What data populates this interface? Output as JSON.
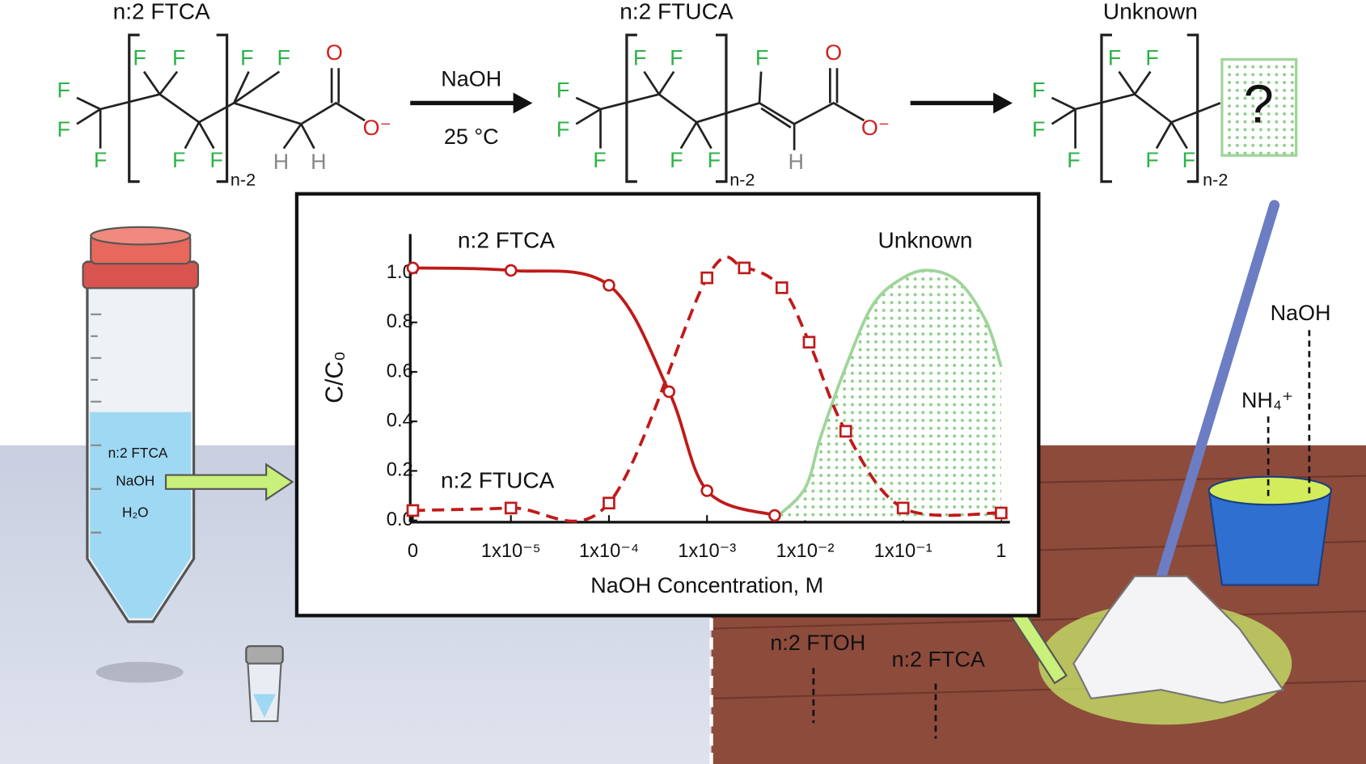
{
  "scheme": {
    "reactant": {
      "name": "n:2 FTCA",
      "atoms": [
        "F",
        "F",
        "F",
        "F",
        "F",
        "F",
        "F",
        "F",
        "F",
        "O",
        "O⁻",
        "H",
        "H"
      ],
      "repeat": "n-2"
    },
    "conditions": [
      "NaOH",
      "25 °C"
    ],
    "product": {
      "name": "n:2 FTUCA",
      "atoms": [
        "F",
        "F",
        "F",
        "F",
        "F",
        "F",
        "F",
        "F",
        "O",
        "O⁻",
        "H"
      ],
      "repeat": "n-2"
    },
    "unknown": {
      "name": "Unknown",
      "atoms": [
        "F",
        "F",
        "F",
        "F",
        "F",
        "F",
        "F"
      ],
      "repeat": "n-2",
      "mark": "?"
    }
  },
  "tube": {
    "labels": [
      "n:2 FTCA",
      "NaOH",
      "H₂O"
    ]
  },
  "bucket": {
    "labels": [
      "NaOH",
      "NH₄⁺"
    ]
  },
  "floor": {
    "labels": [
      "n:2 FTOH",
      "n:2 FTCA"
    ]
  },
  "chart_data": {
    "type": "line",
    "x_label": "NaOH Concentration, M",
    "y_label": "C/C₀",
    "xscale": "log",
    "xlim": [
      1e-06,
      1
    ],
    "xticks": [
      0,
      {
        "value": 1e-05,
        "label": "1x10⁻⁵"
      },
      {
        "value": 0.0001,
        "label": "1x10⁻⁴"
      },
      {
        "value": 0.001,
        "label": "1x10⁻³"
      },
      {
        "value": 0.01,
        "label": "1x10⁻²"
      },
      {
        "value": 0.1,
        "label": "1x10⁻¹"
      },
      1
    ],
    "ylim": [
      0,
      1.15
    ],
    "yticks": [
      {
        "value": 0,
        "label": "0.0"
      },
      0.2,
      0.4,
      0.6,
      0.8,
      {
        "value": 1,
        "label": "1.0"
      }
    ],
    "series": [
      {
        "name": "n:2 FTCA",
        "color": "#c01a1a",
        "marker": "circle",
        "line": "solid",
        "x": [
          0,
          1e-05,
          0.0001,
          0.00041,
          0.001,
          0.0049
        ],
        "values": [
          1.02,
          1.01,
          0.95,
          0.52,
          0.12,
          0.02
        ]
      },
      {
        "name": "n:2 FTUCA",
        "color": "#c01a1a",
        "marker": "square",
        "line": "dashed",
        "x": [
          0,
          1e-05,
          0.0001,
          0.001,
          0.0024,
          0.0058,
          0.011,
          0.026,
          0.1,
          1
        ],
        "values": [
          0.04,
          0.05,
          0.07,
          0.98,
          1.02,
          0.94,
          0.72,
          0.36,
          0.05,
          0.03
        ]
      },
      {
        "name": "Unknown",
        "color": "#9fd59a",
        "marker": "none",
        "line": "solid",
        "fill": "dots",
        "x": [
          0.005,
          0.01,
          0.0145,
          0.026,
          0.049,
          0.1,
          0.19,
          0.38,
          0.71,
          1
        ],
        "values": [
          0.01,
          0.13,
          0.34,
          0.62,
          0.87,
          0.98,
          1.01,
          0.96,
          0.8,
          0.62
        ]
      }
    ]
  }
}
